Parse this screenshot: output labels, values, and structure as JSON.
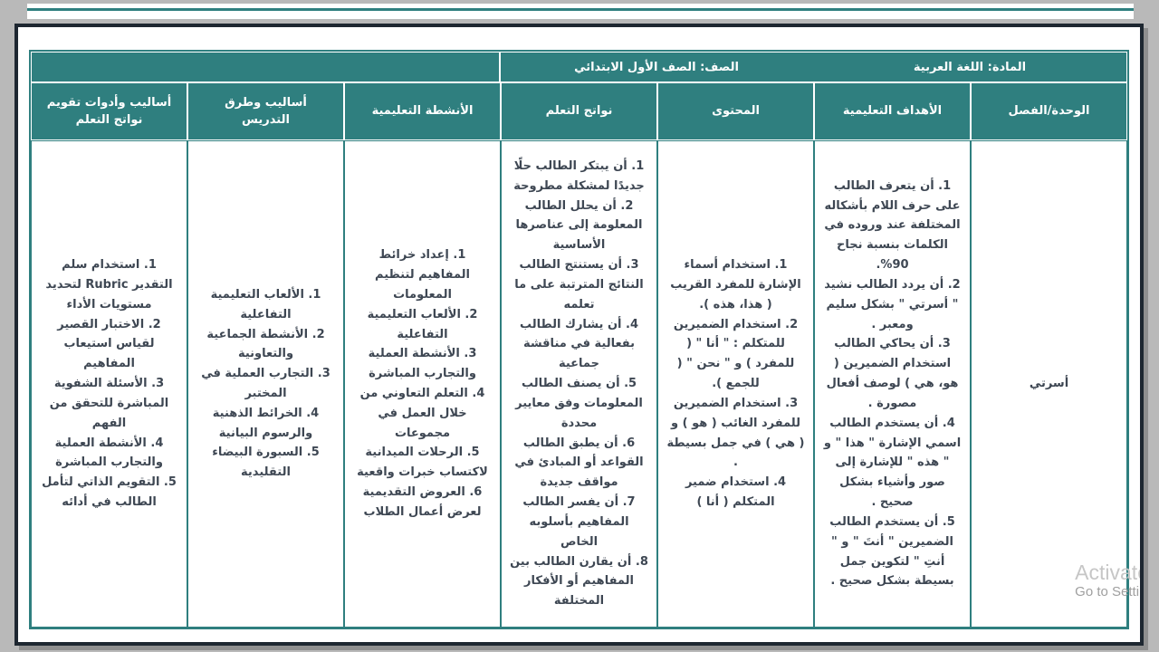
{
  "page": {
    "subject_label": "المادة: اللغة العربية",
    "grade_label": "الصف: الصف الأول الابتدائي"
  },
  "table": {
    "columns": [
      {
        "key": "unit",
        "label": "الوحدة/الفصل",
        "text": "أسرتي"
      },
      {
        "key": "objectives",
        "label": "الأهداف التعليمية",
        "items": [
          "1. أن يتعرف الطالب على حرف اللام بأشكاله المختلفة عند وروده في الكلمات بنسبة نجاح 90%.",
          "2. أن يردد الطالب نشيد \" أسرتي \" بشكل سليم ومعبر .",
          "3. أن يحاكي الطالب استخدام الضميرين ( هو، هي ) لوصف أفعال مصورة .",
          "4. أن يستخدم الطالب اسمي الإشارة \" هذا \" و \" هذه \" للإشارة إلى صور وأشياء بشكل صحيح .",
          "5. أن يستخدم الطالب الضميرين \" أنتَ \" و \" أنتِ \" لتكوين جمل بسيطة بشكل صحيح ."
        ]
      },
      {
        "key": "content",
        "label": "المحتوى",
        "items": [
          "1. استخدام أسماء الإشارة للمفرد القريب ( هذا، هذه ).",
          "2. استخدام الضميرين للمتكلم : \" أنا \" ( للمفرد ) و \" نحن \" ( للجمع ).",
          "3. استخدام الضميرين للمفرد الغائب ( هو ) و ( هي ) في جمل بسيطة .",
          "4. استخدام ضمير المتكلم ( أنا )"
        ]
      },
      {
        "key": "outcomes",
        "label": "نواتج التعلم",
        "items": [
          "1. أن يبتكر الطالب حلًا جديدًا لمشكلة مطروحة",
          "2. أن يحلل الطالب المعلومة إلى عناصرها الأساسية",
          "3. أن يستنتج الطالب النتائج المترتبة على ما تعلمه",
          "4. أن يشارك الطالب بفعالية في مناقشة جماعية",
          "5. أن يصنف الطالب المعلومات وفق معايير محددة",
          "6. أن يطبق الطالب القواعد أو المبادئ في مواقف جديدة",
          "7. أن يفسر الطالب المفاهيم بأسلوبه الخاص",
          "8. أن يقارن الطالب بين المفاهيم أو الأفكار المختلفة"
        ]
      },
      {
        "key": "activities",
        "label": "الأنشطة التعليمية",
        "items": [
          "1. إعداد خرائط المفاهيم لتنظيم المعلومات",
          "2. الألعاب التعليمية التفاعلية",
          "3. الأنشطة العملية والتجارب المباشرة",
          "4. التعلم التعاوني من خلال العمل في مجموعات",
          "5. الرحلات الميدانية لاكتساب خبرات واقعية",
          "6. العروض التقديمية لعرض أعمال الطلاب"
        ]
      },
      {
        "key": "methods",
        "label": "أساليب وطرق التدريس",
        "items": [
          "1. الألعاب التعليمية التفاعلية",
          "2. الأنشطة الجماعية والتعاونية",
          "3. التجارب العملية في المختبر",
          "4. الخرائط الذهنية والرسوم البيانية",
          "5. السبورة البيضاء التقليدية"
        ]
      },
      {
        "key": "assessment",
        "label": "أساليب وأدوات تقويم نواتج التعلم",
        "items": [
          "1. استخدام سلم التقدير Rubric لتحديد مستويات الأداء",
          "2. الاختبار القصير لقياس استيعاب المفاهيم",
          "3. الأسئلة الشفوية المباشرة للتحقق من الفهم",
          "4. الأنشطة العملية والتجارب المباشرة",
          "5. التقويم الذاتي لتأمل الطالب في أدائه"
        ]
      }
    ]
  },
  "colors": {
    "teal": "#2f7f7f",
    "frame": "#1e2731",
    "body_text": "#3e4753"
  },
  "watermark": {
    "line1": "Activate",
    "line2": "Go to Setti"
  }
}
